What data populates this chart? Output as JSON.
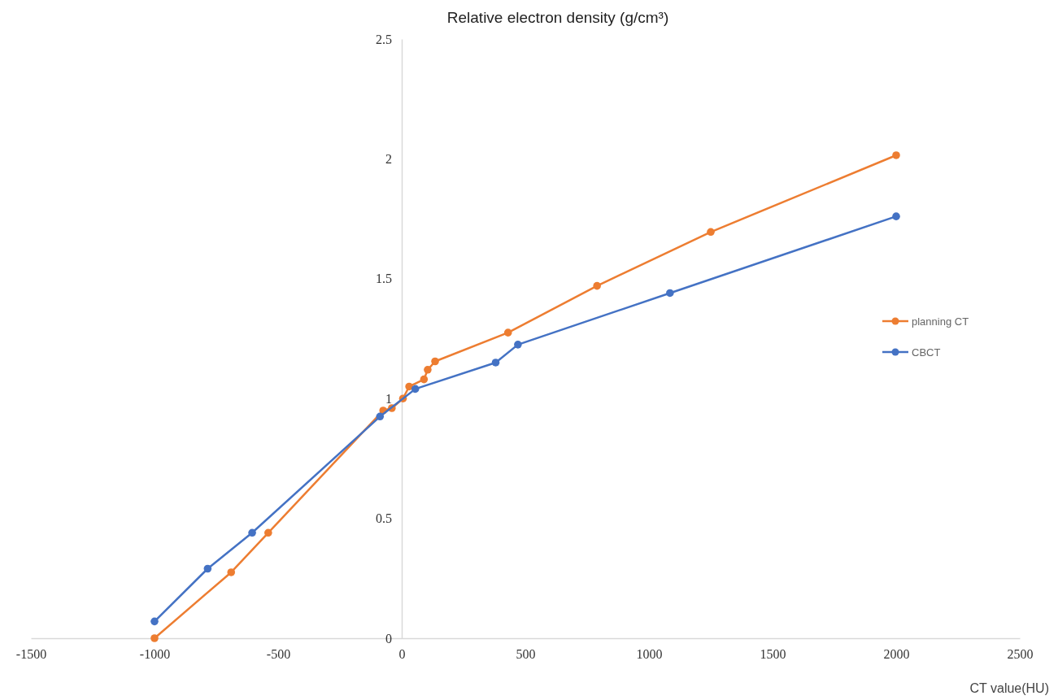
{
  "chart_data": {
    "type": "line",
    "ylabel": "Relative electron density (g/cm³)",
    "xlabel": "CT value(HU)",
    "xlim": [
      -1500,
      2500
    ],
    "xticks": [
      -1500,
      -1000,
      -500,
      0,
      500,
      1000,
      1500,
      2000,
      2500
    ],
    "ylim": [
      0,
      2.5
    ],
    "yticks": [
      0,
      0.5,
      1,
      1.5,
      2,
      2.5
    ],
    "grid": false,
    "legend": "right",
    "marker": "circle",
    "line_style": "solid",
    "series": [
      {
        "name": "planning CT",
        "color": "#ed7d31",
        "x": [
          -1000,
          -690,
          -540,
          -75,
          -40,
          5,
          30,
          90,
          105,
          135,
          430,
          790,
          1250,
          2000
        ],
        "values": [
          0,
          0.275,
          0.44,
          0.95,
          0.96,
          1,
          1.05,
          1.08,
          1.12,
          1.155,
          1.275,
          1.47,
          1.695,
          2.015
        ]
      },
      {
        "name": "CBCT",
        "color": "#4472c4",
        "x": [
          -1000,
          -785,
          -605,
          -88,
          55,
          380,
          470,
          1085,
          2000
        ],
        "values": [
          0.07,
          0.29,
          0.44,
          0.925,
          1.04,
          1.15,
          1.225,
          1.44,
          1.76
        ]
      }
    ]
  }
}
